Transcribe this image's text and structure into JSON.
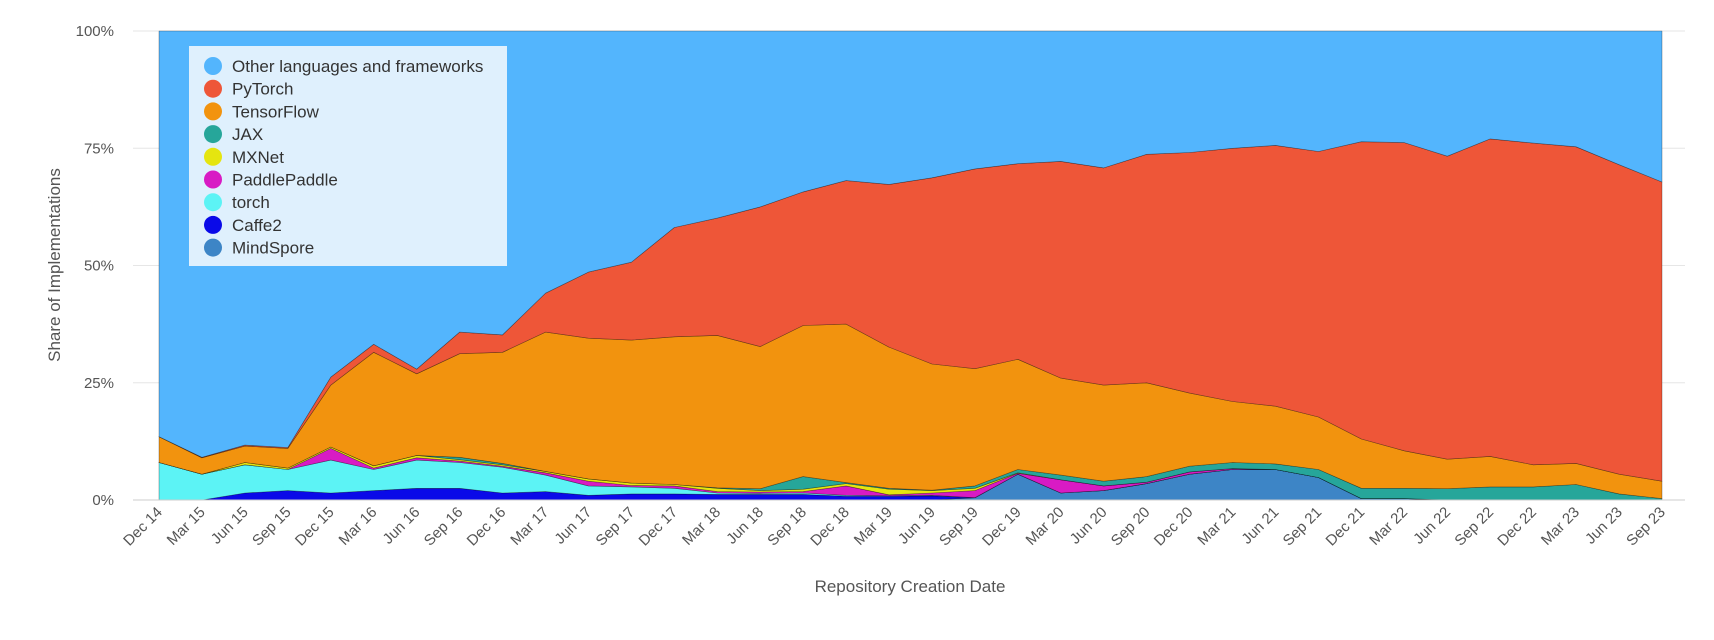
{
  "chart_data": {
    "type": "area",
    "stacked": true,
    "normalized": true,
    "xlabel": "Repository Creation Date",
    "ylabel": "Share of Implementations",
    "ylim": [
      0,
      100
    ],
    "y_ticks": [
      0,
      25,
      50,
      75,
      100
    ],
    "y_tick_labels": [
      "0%",
      "25%",
      "50%",
      "75%",
      "100%"
    ],
    "grid": "horizontal",
    "legend_position": "top-left",
    "categories": [
      "Dec 14",
      "Mar 15",
      "Jun 15",
      "Sep 15",
      "Dec 15",
      "Mar 16",
      "Jun 16",
      "Sep 16",
      "Dec 16",
      "Mar 17",
      "Jun 17",
      "Sep 17",
      "Dec 17",
      "Mar 18",
      "Jun 18",
      "Sep 18",
      "Dec 18",
      "Mar 19",
      "Jun 19",
      "Sep 19",
      "Dec 19",
      "Mar 20",
      "Jun 20",
      "Sep 20",
      "Dec 20",
      "Mar 21",
      "Jun 21",
      "Sep 21",
      "Dec 21",
      "Mar 22",
      "Jun 22",
      "Sep 22",
      "Dec 22",
      "Mar 23",
      "Jun 23",
      "Sep 23"
    ],
    "series": [
      {
        "name": "MindSpore",
        "color": "#3d85c6",
        "values": [
          0,
          0,
          0,
          0,
          0,
          0,
          0,
          0,
          0,
          0,
          0,
          0,
          0,
          0,
          0,
          0,
          0,
          0,
          0,
          0.5,
          5.5,
          1.5,
          2,
          3.5,
          5.5,
          6.5,
          6.5,
          4.8,
          0.3,
          0.3,
          0,
          0,
          0,
          0,
          0,
          0
        ]
      },
      {
        "name": "Caffe2",
        "color": "#0a0ae8",
        "values": [
          0,
          0,
          1.5,
          2,
          1.5,
          2,
          2.5,
          2.5,
          1.5,
          1.8,
          1,
          1.3,
          1.3,
          1.2,
          1.2,
          1.2,
          0.8,
          0.8,
          0.9,
          0,
          0,
          0,
          0,
          0,
          0,
          0,
          0,
          0,
          0,
          0,
          0,
          0,
          0,
          0,
          0,
          0
        ]
      },
      {
        "name": "torch",
        "color": "#5cf3f5",
        "values": [
          8,
          5.5,
          6,
          4.5,
          7,
          4.5,
          6,
          5.5,
          5.5,
          3.5,
          2,
          1.5,
          1.2,
          0.3,
          0.2,
          0.3,
          0.2,
          0.1,
          0.1,
          0,
          0,
          0,
          0,
          0,
          0,
          0,
          0,
          0,
          0,
          0,
          0,
          0,
          0,
          0,
          0,
          0
        ]
      },
      {
        "name": "PaddlePaddle",
        "color": "#d81bc4",
        "values": [
          0,
          0,
          0,
          0,
          2.5,
          0.3,
          0.5,
          0.3,
          0.2,
          0.5,
          1,
          0.3,
          0.5,
          0.3,
          0.3,
          0.3,
          2,
          0.2,
          0.5,
          1.5,
          0.2,
          2.8,
          1,
          0.3,
          0.5,
          0.2,
          0,
          0,
          0,
          0,
          0,
          0,
          0,
          0,
          0,
          0
        ]
      },
      {
        "name": "MXNet",
        "color": "#e5e510",
        "values": [
          0,
          0,
          0.5,
          0.3,
          0.3,
          0.5,
          0.5,
          0.3,
          0.3,
          0.3,
          0.5,
          0.5,
          0.3,
          0.7,
          0.3,
          0.5,
          0.5,
          1.2,
          0.5,
          0.5,
          0.1,
          0,
          0,
          0,
          0,
          0,
          0,
          0,
          0,
          0,
          0,
          0,
          0,
          0,
          0,
          0
        ]
      },
      {
        "name": "JAX",
        "color": "#26a69a",
        "values": [
          0,
          0,
          0,
          0,
          0,
          0,
          0,
          0.5,
          0.3,
          0,
          0,
          0,
          0,
          0.1,
          0.4,
          2.7,
          0.2,
          0.2,
          0.1,
          0.5,
          0.7,
          1,
          1,
          1.2,
          1.2,
          1.3,
          1.2,
          1.7,
          2.2,
          2.2,
          2.4,
          2.8,
          2.8,
          3.3,
          1.3,
          0.3
        ]
      },
      {
        "name": "TensorFlow",
        "color": "#f2930e",
        "values": [
          5.5,
          3.5,
          3.5,
          4.2,
          13.2,
          24.2,
          17.4,
          22.1,
          23.7,
          29.7,
          30,
          30.5,
          31.5,
          32.5,
          30.3,
          32.2,
          33.8,
          30.1,
          26.9,
          25,
          23.5,
          20.7,
          20.5,
          20,
          15.6,
          13,
          12.3,
          11.2,
          10.5,
          8,
          6.3,
          6.5,
          4.7,
          4.5,
          4.2,
          3.7
        ]
      },
      {
        "name": "PyTorch",
        "color": "#ee5638",
        "values": [
          0,
          0.1,
          0.2,
          0.2,
          1.7,
          1.7,
          1,
          4.6,
          3.7,
          8.3,
          14.1,
          16.6,
          23.3,
          25,
          29.8,
          28.5,
          30.6,
          34.7,
          39.7,
          42.6,
          41.7,
          46.2,
          46.3,
          48.7,
          51.3,
          54,
          55.6,
          56.6,
          63.4,
          65.7,
          64.6,
          67.7,
          68.6,
          67.5,
          66,
          63.8
        ]
      },
      {
        "name": "Other languages and frameworks",
        "color": "#53b5fd",
        "values": [
          86.5,
          90.9,
          88.3,
          88.8,
          73.8,
          66.8,
          72.1,
          64.2,
          64.8,
          55.9,
          51.4,
          49.3,
          41.9,
          39.9,
          37.5,
          34.3,
          31.9,
          32.7,
          31.3,
          29.4,
          28.3,
          27.8,
          29.2,
          26.3,
          25.9,
          25,
          24.4,
          25.7,
          23.6,
          23.8,
          26.7,
          23,
          23.9,
          24.7,
          28.5,
          32.2
        ]
      }
    ],
    "legend_order": [
      "Other languages and frameworks",
      "PyTorch",
      "TensorFlow",
      "JAX",
      "MXNet",
      "PaddlePaddle",
      "torch",
      "Caffe2",
      "MindSpore"
    ]
  }
}
